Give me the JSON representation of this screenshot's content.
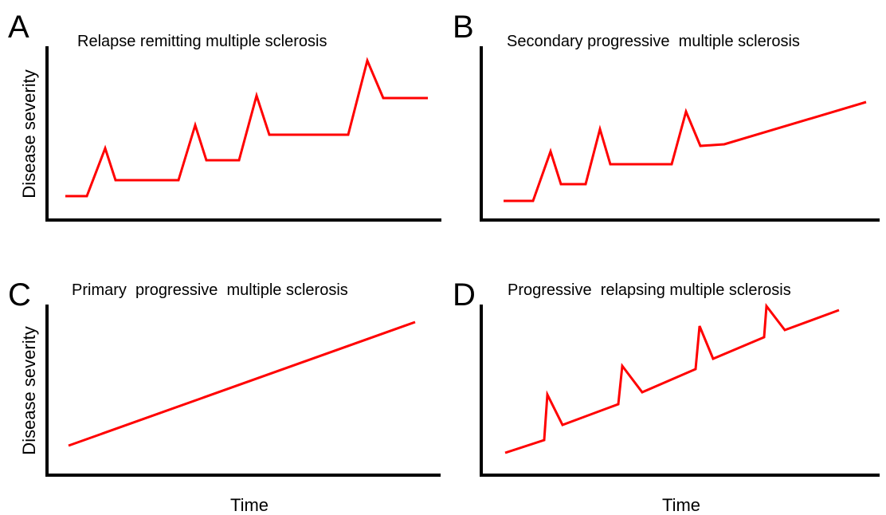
{
  "curve_color": "#ff0000",
  "axis_color": "#000000",
  "panels": [
    {
      "letter": "A",
      "title": "Relapse remitting multiple sclerosis",
      "ylabel": "Disease severity",
      "xlabel": ""
    },
    {
      "letter": "B",
      "title": "Secondary progressive  multiple sclerosis",
      "ylabel": "",
      "xlabel": ""
    },
    {
      "letter": "C",
      "title": "Primary  progressive  multiple sclerosis",
      "ylabel": "Disease severity",
      "xlabel": "Time"
    },
    {
      "letter": "D",
      "title": "Progressive  relapsing multiple sclerosis",
      "ylabel": "",
      "xlabel": "Time"
    }
  ]
}
